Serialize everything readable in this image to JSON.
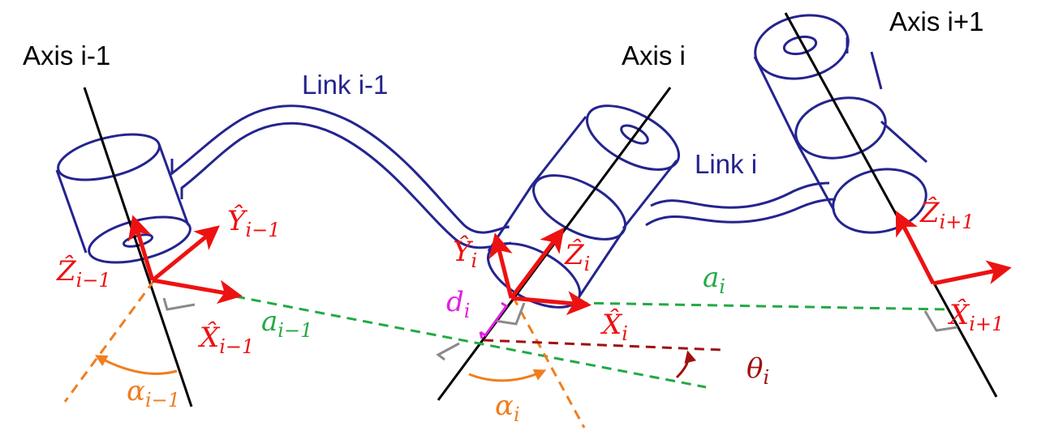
{
  "colors": {
    "axis": "#000000",
    "link": "#24248f",
    "frame": "#ee1111",
    "common_normal": "#22aa44",
    "alpha_line": "#f07e1e",
    "theta_line": "#a01010",
    "offset": "#e020e0",
    "right_angle": "#8a8a8a"
  },
  "axes": {
    "prev": "Axis i-1",
    "curr": "Axis i",
    "next": "Axis i+1"
  },
  "links": {
    "prev": "Link i-1",
    "curr": "Link i"
  },
  "frames": {
    "z_prev": {
      "base": "Ẑ",
      "sub": "i−1"
    },
    "y_prev": {
      "base": "Ŷ",
      "sub": "i−1"
    },
    "x_prev": {
      "base": "X̂",
      "sub": "i−1"
    },
    "z_curr": {
      "base": "Ẑ",
      "sub": "i"
    },
    "y_curr": {
      "base": "Ŷ",
      "sub": "i"
    },
    "x_curr": {
      "base": "X̂",
      "sub": "i"
    },
    "z_next": {
      "base": "Ẑ",
      "sub": "i+1"
    },
    "x_next": {
      "base": "X̂",
      "sub": "i+1"
    }
  },
  "parameters": {
    "a_prev": {
      "base": "a",
      "sub": "i−1"
    },
    "a_curr": {
      "base": "a",
      "sub": "i"
    },
    "alpha_prev": {
      "base": "α",
      "sub": "i−1"
    },
    "alpha_curr": {
      "base": "α",
      "sub": "i"
    },
    "d_curr": {
      "base": "d",
      "sub": "i"
    },
    "theta_curr": {
      "base": "θ",
      "sub": "i"
    }
  }
}
